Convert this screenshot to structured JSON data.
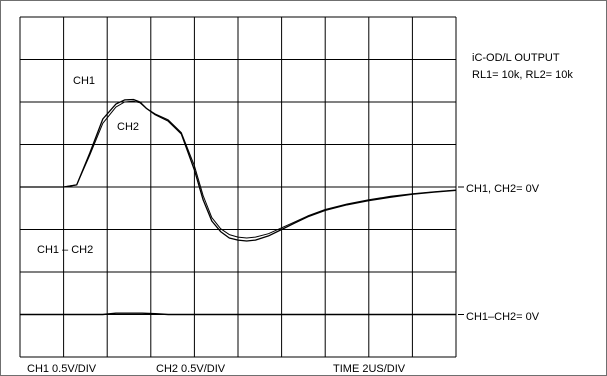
{
  "chart_data": {
    "type": "line",
    "title": "iC-OD/L OUTPUT",
    "subtitle": "RL1= 10k, RL2= 10k",
    "grid": true,
    "grid_divisions": {
      "x": 10,
      "y": 8
    },
    "x_unit_label": "TIME 2US/DIV",
    "y_unit_labels": [
      "CH1 0.5V/DIV",
      "CH2 0.5V/DIV"
    ],
    "xlim": [
      0,
      10
    ],
    "ylim": [
      -4,
      4
    ],
    "trace_labels": [
      "CH1",
      "CH2",
      "CH1 – CH2"
    ],
    "reference_labels": [
      "CH1, CH2= 0V",
      "CH1–CH2= 0V"
    ],
    "reference_levels_div": [
      0,
      -3
    ],
    "series": [
      {
        "name": "CH1",
        "x": [
          0,
          0.5,
          1.0,
          1.3,
          1.6,
          1.9,
          2.2,
          2.4,
          2.6,
          2.75,
          2.9,
          3.1,
          3.4,
          3.7,
          4.0,
          4.2,
          4.4,
          4.6,
          4.8,
          5.0,
          5.2,
          5.4,
          5.7,
          6.0,
          6.3,
          6.6,
          7.0,
          7.5,
          8.0,
          8.5,
          9.0,
          9.5,
          10.0
        ],
        "y": [
          0,
          0,
          0,
          0.05,
          0.8,
          1.6,
          1.95,
          2.05,
          2.06,
          2.0,
          1.85,
          1.7,
          1.55,
          1.25,
          0.4,
          -0.3,
          -0.8,
          -1.05,
          -1.2,
          -1.25,
          -1.27,
          -1.25,
          -1.15,
          -1.0,
          -0.85,
          -0.7,
          -0.55,
          -0.42,
          -0.32,
          -0.24,
          -0.17,
          -0.12,
          -0.08
        ]
      },
      {
        "name": "CH2",
        "x": [
          0,
          0.5,
          1.0,
          1.3,
          1.6,
          1.9,
          2.2,
          2.4,
          2.6,
          2.75,
          2.9,
          3.1,
          3.4,
          3.7,
          4.0,
          4.2,
          4.4,
          4.6,
          4.8,
          5.0,
          5.2,
          5.4,
          5.7,
          6.0,
          6.3,
          6.6,
          7.0,
          7.5,
          8.0,
          8.5,
          9.0,
          9.5,
          10.0
        ],
        "y": [
          0,
          0,
          0,
          0.05,
          0.75,
          1.5,
          1.88,
          2.0,
          2.02,
          1.98,
          1.85,
          1.72,
          1.58,
          1.28,
          0.5,
          -0.2,
          -0.72,
          -0.98,
          -1.12,
          -1.18,
          -1.2,
          -1.18,
          -1.1,
          -0.96,
          -0.82,
          -0.68,
          -0.53,
          -0.4,
          -0.3,
          -0.22,
          -0.16,
          -0.11,
          -0.07
        ]
      },
      {
        "name": "CH1 – CH2",
        "x": [
          0,
          0.5,
          1.0,
          1.9,
          2.2,
          2.8,
          3.1,
          3.4,
          3.6,
          4.0,
          5.0,
          6.0,
          7.0,
          7.6,
          8.2,
          9.0,
          10.0
        ],
        "y": [
          -3,
          -3,
          -3,
          -3,
          -2.97,
          -2.97,
          -2.98,
          -3,
          -3,
          -3,
          -3,
          -3,
          -3,
          -3,
          -3,
          -3,
          -3
        ]
      }
    ]
  }
}
